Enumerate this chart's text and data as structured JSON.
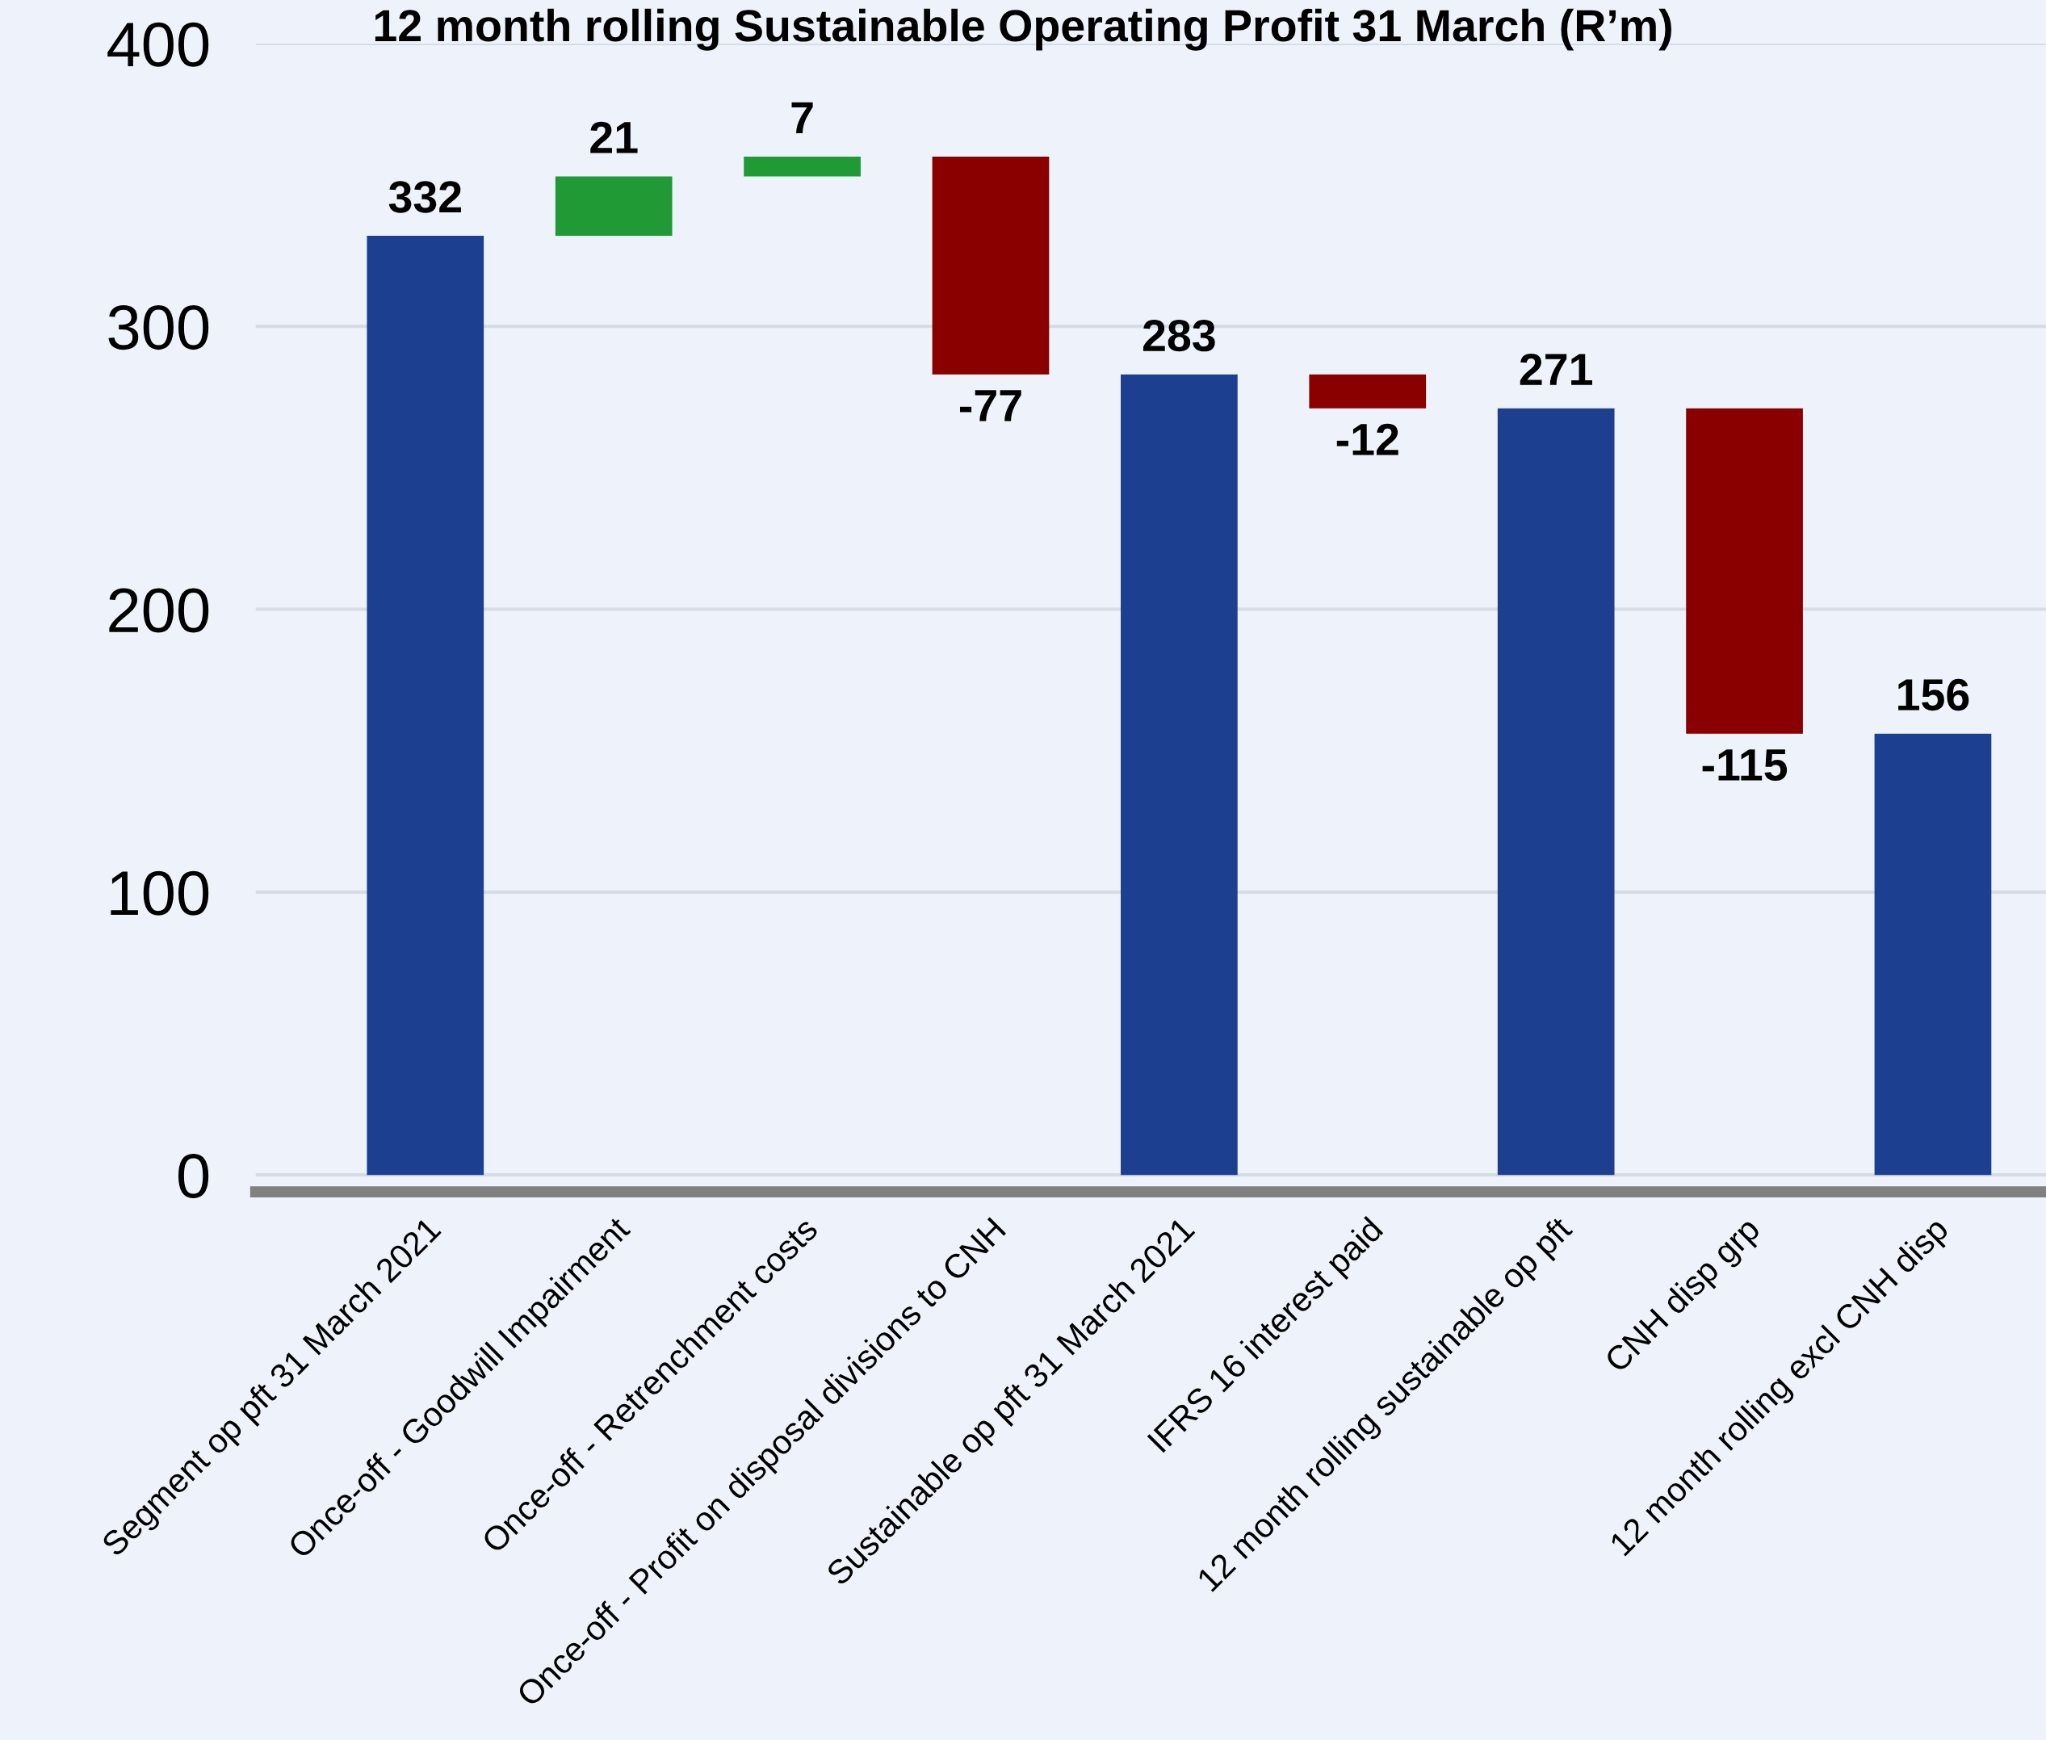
{
  "chart_data": {
    "type": "bar",
    "title": "12 month rolling Sustainable Operating Profit 31 March (R’m)",
    "categories": [
      "Segment op pft 31 March 2021",
      "Once-off - Goodwill Impairment",
      "Once-off - Retrenchment costs",
      "Once-off - Profit on disposal divisions to CNH",
      "Sustainable op pft 31 March 2021",
      "IFRS 16 interest paid",
      "12 month rolling sustainable op pft",
      "CNH disp grp",
      "12 month rolling excl CNH disp"
    ],
    "values": [
      332,
      21,
      7,
      -77,
      283,
      -12,
      271,
      -115,
      156
    ],
    "base": [
      0,
      332,
      353,
      360,
      0,
      283,
      0,
      271,
      0
    ],
    "colors": [
      "#1d3f8f",
      "#1f9a35",
      "#1f9a35",
      "#8a0000",
      "#1d3f8f",
      "#8a0000",
      "#1d3f8f",
      "#8a0000",
      "#1d3f8f"
    ],
    "ylim": [
      -6,
      400
    ],
    "yticks": [
      0,
      100,
      200,
      300,
      400
    ],
    "grid": "y",
    "data_labels": true
  }
}
